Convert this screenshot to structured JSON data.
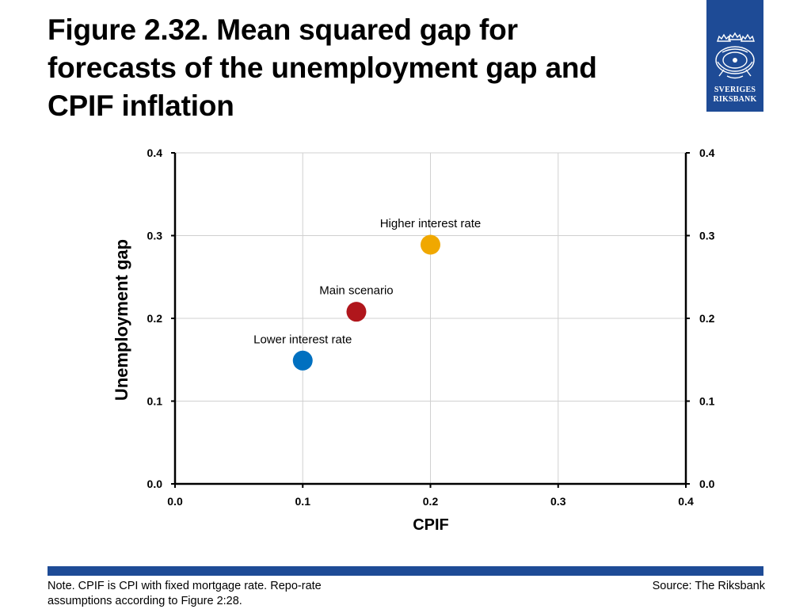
{
  "page": {
    "title": "Figure 2.32. Mean squared gap for forecasts of the unemployment gap and CPIF inflation"
  },
  "logo": {
    "line1": "SVERIGES",
    "line2": "RIKSBANK",
    "color": "#1e4b96"
  },
  "chart_data": {
    "type": "scatter",
    "xlabel": "CPIF",
    "ylabel": "Unemployment gap",
    "xlim": [
      0,
      0.4
    ],
    "ylim": [
      0,
      0.4
    ],
    "x_ticks": [
      "0.0",
      "0.1",
      "0.2",
      "0.3",
      "0.4"
    ],
    "y_ticks": [
      "0.0",
      "0.1",
      "0.2",
      "0.3",
      "0.4"
    ],
    "y_ticks_right": [
      "0.0",
      "0.1",
      "0.2",
      "0.3",
      "0.4"
    ],
    "grid": true,
    "points": [
      {
        "label": "Lower interest rate",
        "x": 0.1,
        "y": 0.149,
        "color": "#0070c0"
      },
      {
        "label": "Main scenario",
        "x": 0.142,
        "y": 0.208,
        "color": "#b0161c"
      },
      {
        "label": "Higher interest rate",
        "x": 0.2,
        "y": 0.289,
        "color": "#f0a800"
      }
    ]
  },
  "footer": {
    "note": "Note. CPIF is CPI with fixed mortgage rate. Repo-rate assumptions according to Figure 2:28.",
    "source": "Source: The Riksbank",
    "bar_color": "#1e4b96"
  }
}
